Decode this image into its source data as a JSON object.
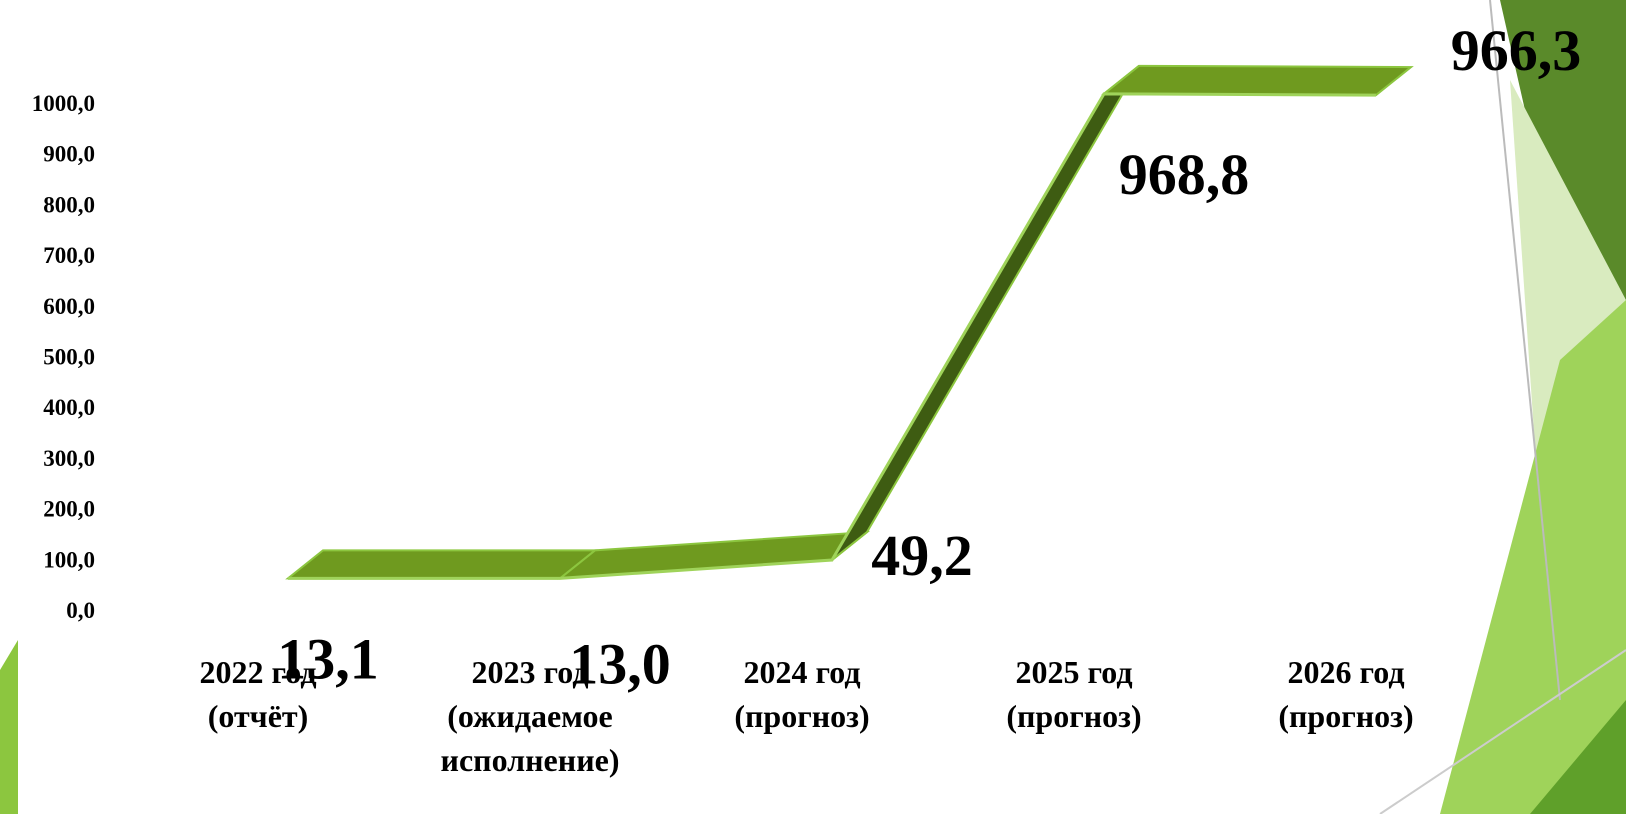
{
  "chart_data": {
    "type": "line",
    "categories": [
      [
        "2022 год",
        "(отчёт)"
      ],
      [
        "2023 год",
        "(ожидаемое",
        "исполнение)"
      ],
      [
        "2024 год",
        "(прогноз)"
      ],
      [
        "2025 год",
        "(прогноз)"
      ],
      [
        "2026 год",
        "(прогноз)"
      ]
    ],
    "series": [
      {
        "color": "#6f9a1f",
        "values": [
          13.1,
          13.0,
          49.2,
          968.8,
          966.3
        ],
        "value_labels": [
          "13,1",
          "13,0",
          "49,2",
          "968,8",
          "966,3"
        ]
      }
    ],
    "ylim": [
      0,
      1000
    ],
    "yticks": [
      {
        "value": 0,
        "label": "0,0"
      },
      {
        "value": 100,
        "label": "100,0"
      },
      {
        "value": 200,
        "label": "200,0"
      },
      {
        "value": 300,
        "label": "300,0"
      },
      {
        "value": 400,
        "label": "400,0"
      },
      {
        "value": 500,
        "label": "500,0"
      },
      {
        "value": 600,
        "label": "600,0"
      },
      {
        "value": 700,
        "label": "700,0"
      },
      {
        "value": 800,
        "label": "800,0"
      },
      {
        "value": 900,
        "label": "900,0"
      },
      {
        "value": 1000,
        "label": "1000,0"
      }
    ]
  }
}
